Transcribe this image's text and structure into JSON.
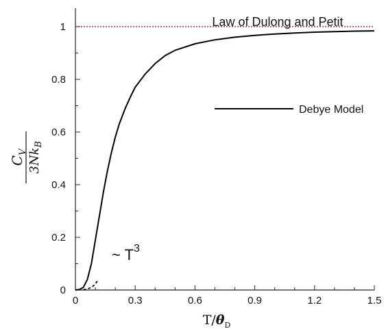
{
  "chart_data": {
    "type": "line",
    "xlim": [
      0,
      1.5
    ],
    "ylim": [
      0,
      1.07
    ],
    "x_ticks": [
      "0",
      "0.3",
      "0.6",
      "0.9",
      "1.2",
      "1.5"
    ],
    "y_ticks": [
      "0",
      "0.2",
      "0.4",
      "0.6",
      "0.8",
      "1"
    ],
    "x_tick_values": [
      0,
      0.3,
      0.6,
      0.9,
      1.2,
      1.5
    ],
    "y_tick_values": [
      0,
      0.2,
      0.4,
      0.6,
      0.8,
      1.0
    ],
    "xlabel": {
      "main": "T/",
      "symbol": "θ",
      "sub": "D"
    },
    "ylabel": {
      "numerator": "C",
      "numerator_sub": "V",
      "denominator": "3Nk",
      "denominator_sub": "B"
    },
    "grid": false,
    "series": [
      {
        "name": "Debye Model",
        "color": "#000000",
        "x": [
          0,
          0.02,
          0.04,
          0.06,
          0.08,
          0.1,
          0.12,
          0.14,
          0.16,
          0.18,
          0.2,
          0.22,
          0.25,
          0.28,
          0.3,
          0.35,
          0.4,
          0.45,
          0.5,
          0.6,
          0.7,
          0.8,
          0.9,
          1.0,
          1.1,
          1.2,
          1.3,
          1.4,
          1.5
        ],
        "y": [
          0,
          0.002,
          0.01,
          0.04,
          0.1,
          0.19,
          0.28,
          0.37,
          0.45,
          0.52,
          0.58,
          0.63,
          0.69,
          0.74,
          0.77,
          0.82,
          0.86,
          0.89,
          0.91,
          0.935,
          0.95,
          0.96,
          0.967,
          0.972,
          0.976,
          0.979,
          0.981,
          0.983,
          0.984
        ]
      },
      {
        "name": "Law of Dulong and Petit",
        "color": "#cc2222",
        "dashed": true,
        "x": [
          0,
          1.5
        ],
        "y": [
          1,
          1
        ]
      }
    ],
    "t3_curve": {
      "x": [
        0.04,
        0.06,
        0.08,
        0.1,
        0.11
      ],
      "y": [
        0.001,
        0.004,
        0.01,
        0.022,
        0.035
      ]
    },
    "legend": {
      "placement": "center-right",
      "entries": [
        {
          "label": "Debye Model",
          "color": "#000000"
        }
      ]
    },
    "annotations": {
      "dulong_petit": "Law of Dulong and Petit",
      "t3_prefix": "~ T",
      "t3_exponent": "3"
    }
  }
}
